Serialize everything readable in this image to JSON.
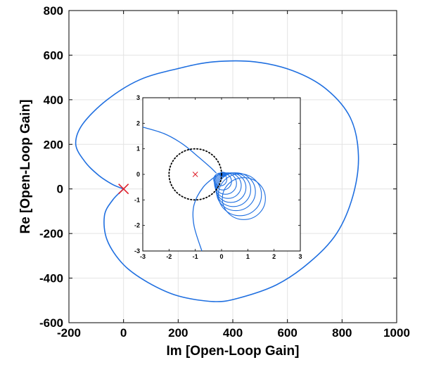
{
  "chart_data": {
    "type": "line",
    "main": {
      "xlabel": "Im [Open-Loop Gain]",
      "ylabel": "Re [Open-Loop Gain]",
      "xlim": [
        -200,
        1000
      ],
      "ylim": [
        -600,
        800
      ],
      "xticks": [
        "-200",
        "0",
        "200",
        "400",
        "600",
        "800",
        "1000"
      ],
      "yticks": [
        "-600",
        "-400",
        "-200",
        "0",
        "200",
        "400",
        "600",
        "800"
      ],
      "grid": true,
      "series": [
        {
          "color": "#1f6fe0",
          "points": [
            [
              0,
              0
            ],
            [
              -40,
              20
            ],
            [
              -90,
              60
            ],
            [
              -140,
              120
            ],
            [
              -175,
              200
            ],
            [
              -150,
              290
            ],
            [
              -60,
              400
            ],
            [
              60,
              490
            ],
            [
              200,
              540
            ],
            [
              330,
              570
            ],
            [
              480,
              570
            ],
            [
              620,
              530
            ],
            [
              740,
              450
            ],
            [
              830,
              320
            ],
            [
              860,
              150
            ],
            [
              840,
              -30
            ],
            [
              780,
              -200
            ],
            [
              680,
              -330
            ],
            [
              560,
              -430
            ],
            [
              420,
              -490
            ],
            [
              330,
              -505
            ],
            [
              200,
              -480
            ],
            [
              90,
              -420
            ],
            [
              0,
              -340
            ],
            [
              -60,
              -230
            ],
            [
              -70,
              -120
            ],
            [
              -40,
              -50
            ],
            [
              0,
              0
            ]
          ]
        }
      ],
      "markers": [
        {
          "x": 0,
          "y": 0,
          "symbol": "x",
          "color": "#e0202a"
        }
      ]
    },
    "inset": {
      "xlim": [
        -3,
        3
      ],
      "ylim": [
        -3,
        3
      ],
      "xticks": [
        "-3",
        "-2",
        "-1",
        "0",
        "1",
        "2",
        "3"
      ],
      "yticks": [
        "-3",
        "-2",
        "-1",
        "0",
        "1",
        "2",
        "3"
      ],
      "grid": false,
      "unit_circle": {
        "cx": -1,
        "cy": 0,
        "r": 1,
        "color": "#000000"
      },
      "marker": {
        "x": -1,
        "y": 0,
        "symbol": "x",
        "color": "#e0202a"
      },
      "series_color": "#1f6fe0",
      "outer_branch_upper": [
        [
          -3,
          1.85
        ],
        [
          -2.2,
          1.6
        ],
        [
          -1.5,
          1.2
        ],
        [
          -0.9,
          0.7
        ],
        [
          -0.45,
          0.3
        ],
        [
          -0.2,
          0.05
        ]
      ],
      "outer_branch_lower": [
        [
          -0.2,
          -0.05
        ],
        [
          -0.7,
          -0.5
        ],
        [
          -1.05,
          -1.2
        ],
        [
          -1.05,
          -2.0
        ],
        [
          -0.75,
          -3.0
        ]
      ],
      "loops": [
        {
          "cx": -0.05,
          "cy": -0.2,
          "r": 0.25
        },
        {
          "cx": 0.05,
          "cy": -0.28,
          "r": 0.33
        },
        {
          "cx": 0.15,
          "cy": -0.36,
          "r": 0.42
        },
        {
          "cx": 0.25,
          "cy": -0.44,
          "r": 0.5
        },
        {
          "cx": 0.35,
          "cy": -0.52,
          "r": 0.58
        },
        {
          "cx": 0.45,
          "cy": -0.6,
          "r": 0.66
        },
        {
          "cx": 0.55,
          "cy": -0.68,
          "r": 0.74
        },
        {
          "cx": 0.7,
          "cy": -0.8,
          "r": 0.82
        },
        {
          "cx": 0.85,
          "cy": -0.95,
          "r": 0.82
        }
      ]
    }
  }
}
